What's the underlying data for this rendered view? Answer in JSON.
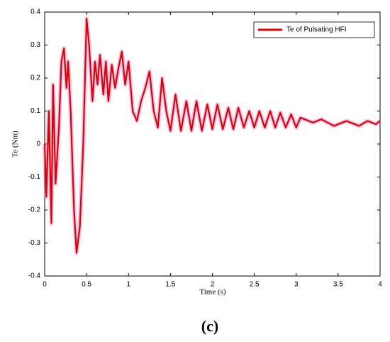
{
  "chart_data": {
    "type": "line",
    "caption": "(c)",
    "xlabel": "Time (s)",
    "ylabel": "Te (Nm)",
    "x": [
      0,
      0.02,
      0.05,
      0.08,
      0.1,
      0.13,
      0.17,
      0.2,
      0.23,
      0.26,
      0.28,
      0.31,
      0.35,
      0.38,
      0.42,
      0.46,
      0.5,
      0.53,
      0.57,
      0.6,
      0.63,
      0.66,
      0.7,
      0.73,
      0.76,
      0.8,
      0.84,
      0.88,
      0.92,
      0.96,
      1.0,
      1.05,
      1.1,
      1.15,
      1.2,
      1.25,
      1.3,
      1.35,
      1.4,
      1.45,
      1.5,
      1.56,
      1.625,
      1.69,
      1.75,
      1.81,
      1.875,
      1.94,
      2.0,
      2.06,
      2.125,
      2.19,
      2.25,
      2.31,
      2.375,
      2.44,
      2.5,
      2.56,
      2.625,
      2.69,
      2.75,
      2.81,
      2.875,
      2.94,
      3.0,
      3.05,
      3.2,
      3.3,
      3.45,
      3.6,
      3.75,
      3.85,
      3.95,
      4.0
    ],
    "series": [
      {
        "name": "Te of Pulsating HFI",
        "color": "#e00000",
        "values": [
          0,
          -0.16,
          0.1,
          -0.24,
          0.18,
          -0.12,
          0.05,
          0.25,
          0.29,
          0.17,
          0.25,
          0.1,
          -0.2,
          -0.33,
          -0.25,
          0.0,
          0.38,
          0.3,
          0.13,
          0.25,
          0.18,
          0.27,
          0.15,
          0.25,
          0.13,
          0.24,
          0.17,
          0.23,
          0.28,
          0.18,
          0.25,
          0.1,
          0.07,
          0.13,
          0.17,
          0.22,
          0.1,
          0.05,
          0.2,
          0.1,
          0.04,
          0.15,
          0.04,
          0.13,
          0.04,
          0.13,
          0.04,
          0.12,
          0.045,
          0.12,
          0.045,
          0.11,
          0.045,
          0.11,
          0.05,
          0.1,
          0.05,
          0.1,
          0.05,
          0.1,
          0.05,
          0.095,
          0.05,
          0.09,
          0.05,
          0.08,
          0.065,
          0.075,
          0.055,
          0.07,
          0.055,
          0.07,
          0.06,
          0.07
        ]
      }
    ],
    "xlim": [
      0,
      4
    ],
    "xticks": [
      0,
      0.5,
      1,
      1.5,
      2,
      2.5,
      3,
      3.5,
      4
    ],
    "ylim": [
      -0.4,
      0.4
    ],
    "yticks": [
      -0.4,
      -0.3,
      -0.2,
      -0.1,
      0,
      0.1,
      0.2,
      0.3,
      0.4
    ],
    "grid": false,
    "legend": "upper right"
  }
}
